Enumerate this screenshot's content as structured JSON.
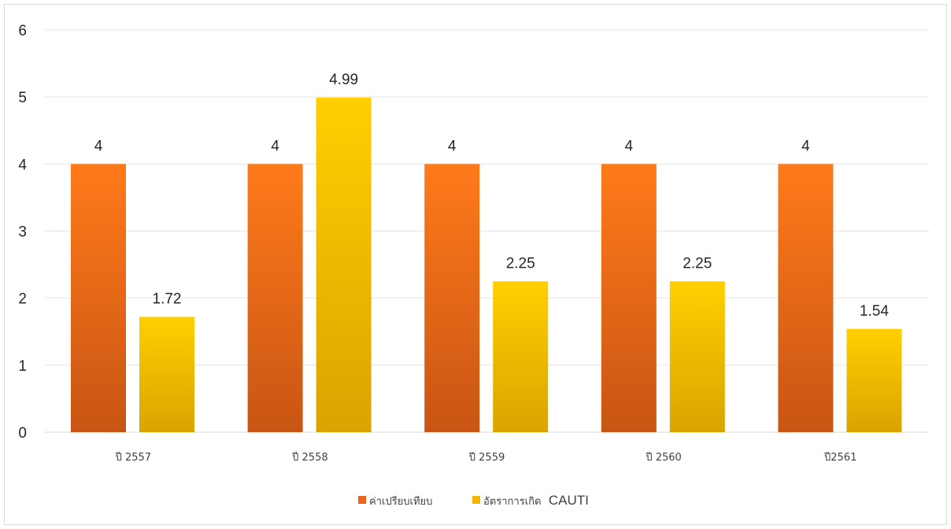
{
  "chart_data": {
    "type": "bar",
    "title": "",
    "xlabel": "",
    "ylabel": "",
    "ylim": [
      0,
      6
    ],
    "yticks": [
      "0",
      "1",
      "2",
      "3",
      "4",
      "5",
      "6"
    ],
    "grid": true,
    "legend_position": "bottom",
    "categories": [
      "ปี 2557",
      "ปี 2558",
      "ปี 2559",
      "ปี 2560",
      "ปี2561"
    ],
    "series": [
      {
        "name": "ค่าเปรียบเทียบ",
        "values": [
          4,
          4,
          4,
          4,
          4
        ],
        "labels": [
          "4",
          "4",
          "4",
          "4",
          "4"
        ],
        "color_top": "#ff7a1a",
        "color_bottom": "#c85514"
      },
      {
        "name": "อัตราการเกิด CAUTI",
        "values": [
          1.72,
          4.99,
          2.25,
          2.25,
          1.54
        ],
        "labels": [
          "1.72",
          "4.99",
          "2.25",
          "2.25",
          "1.54"
        ],
        "color_top": "#ffcf00",
        "color_bottom": "#d9a400"
      }
    ]
  },
  "legend": {
    "series_0": "ค่าเปรียบเทียบ",
    "series_1_thai": "อัตราการเกิด",
    "series_1_latin": "CAUTI"
  }
}
